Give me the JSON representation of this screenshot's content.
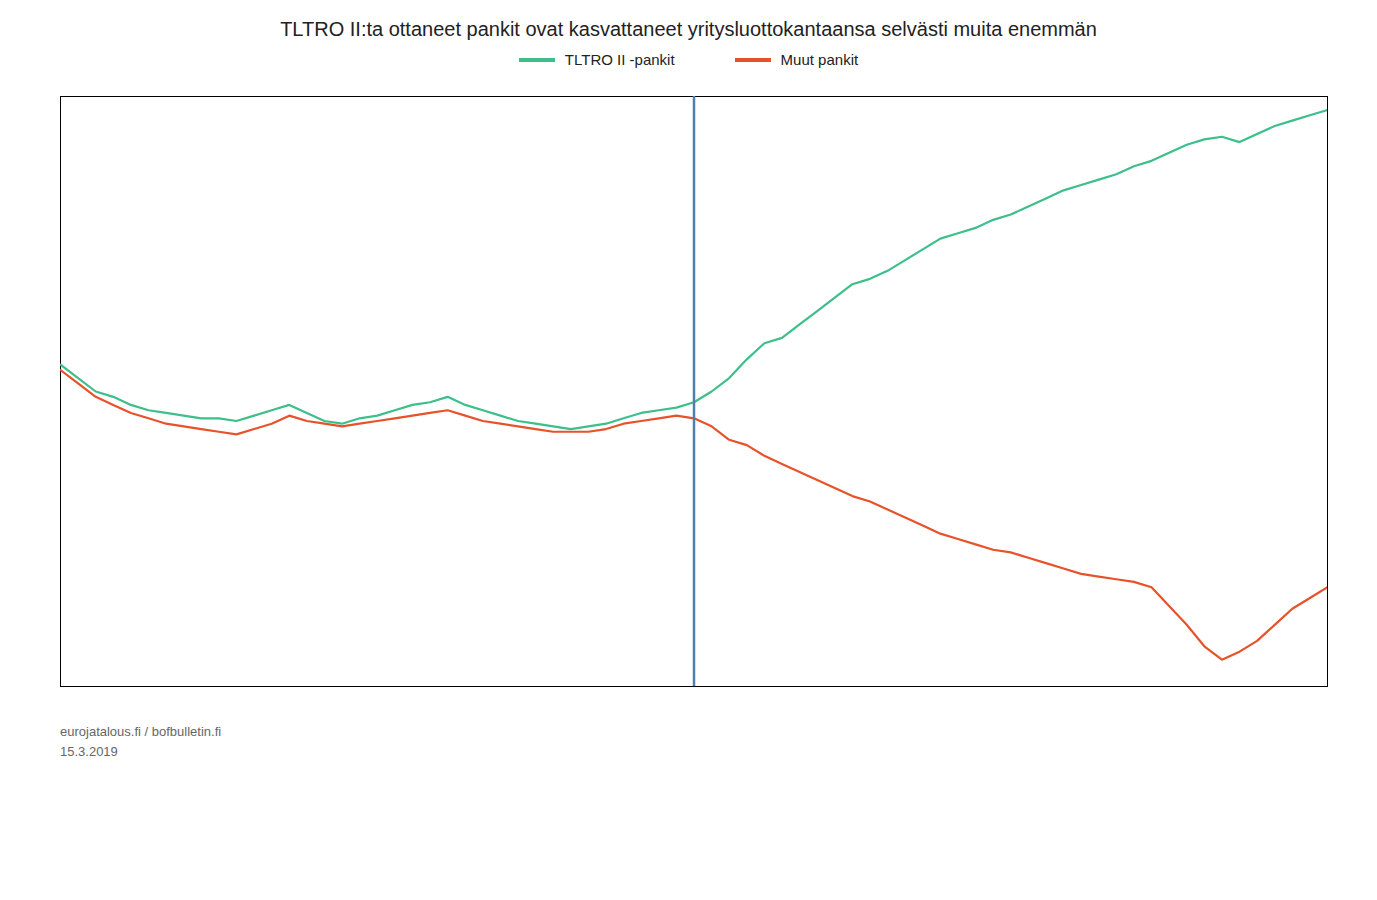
{
  "chart_data": {
    "type": "line",
    "title": "TLTRO II:ta ottaneet pankit ovat kasvattaneet yritysluottokantaansa selvästi muita enemmän",
    "series": [
      {
        "name": "TLTRO II -pankit",
        "color": "#3dbf8a",
        "values": [
          4.0,
          3.5,
          3.0,
          2.8,
          2.5,
          2.3,
          2.2,
          2.1,
          2.0,
          2.0,
          1.9,
          2.1,
          2.3,
          2.5,
          2.2,
          1.9,
          1.8,
          2.0,
          2.1,
          2.3,
          2.5,
          2.6,
          2.8,
          2.5,
          2.3,
          2.1,
          1.9,
          1.8,
          1.7,
          1.6,
          1.7,
          1.8,
          2.0,
          2.2,
          2.3,
          2.4,
          2.6,
          3.0,
          3.5,
          4.2,
          4.8,
          5.0,
          5.5,
          6.0,
          6.5,
          7.0,
          7.2,
          7.5,
          7.9,
          8.3,
          8.7,
          8.9,
          9.1,
          9.4,
          9.6,
          9.9,
          10.2,
          10.5,
          10.7,
          10.9,
          11.1,
          11.4,
          11.6,
          11.9,
          12.2,
          12.4,
          12.5,
          12.3,
          12.6,
          12.9,
          13.1,
          13.3,
          13.5
        ]
      },
      {
        "name": "Muut pankit",
        "color": "#e8522a",
        "values": [
          3.8,
          3.3,
          2.8,
          2.5,
          2.2,
          2.0,
          1.8,
          1.7,
          1.6,
          1.5,
          1.4,
          1.6,
          1.8,
          2.1,
          1.9,
          1.8,
          1.7,
          1.8,
          1.9,
          2.0,
          2.1,
          2.2,
          2.3,
          2.1,
          1.9,
          1.8,
          1.7,
          1.6,
          1.5,
          1.5,
          1.5,
          1.6,
          1.8,
          1.9,
          2.0,
          2.1,
          2.0,
          1.7,
          1.2,
          1.0,
          0.6,
          0.3,
          0.0,
          -0.3,
          -0.6,
          -0.9,
          -1.1,
          -1.4,
          -1.7,
          -2.0,
          -2.3,
          -2.5,
          -2.7,
          -2.9,
          -3.0,
          -3.2,
          -3.4,
          -3.6,
          -3.8,
          -3.9,
          -4.0,
          -4.1,
          -4.3,
          -5.0,
          -5.7,
          -6.5,
          -7.0,
          -6.7,
          -6.3,
          -5.7,
          -5.1,
          -4.7,
          -4.3
        ]
      }
    ],
    "xlim": [
      0,
      72
    ],
    "ylim": [
      -8,
      14
    ],
    "xticks": [],
    "yticks": [],
    "tick_labels": false,
    "grid": false,
    "legend": "top",
    "annotations": [
      {
        "type": "vline",
        "x": 36,
        "color": "#4f7faa"
      }
    ],
    "caption": [
      "eurojatalous.fi / bofbulletin.fi",
      "15.3.2019"
    ]
  }
}
